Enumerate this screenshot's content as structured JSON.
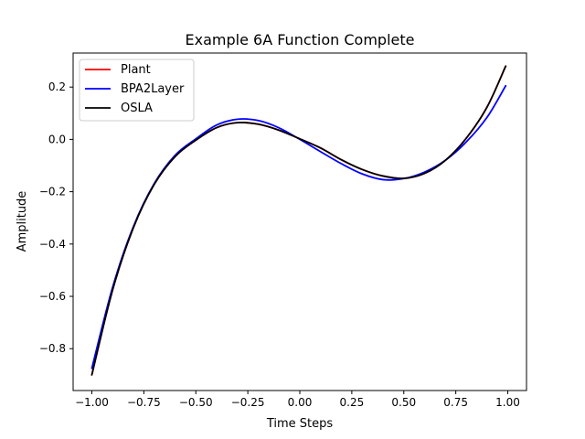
{
  "chart_data": {
    "type": "line",
    "title": "Example 6A Function Complete",
    "xlabel": "Time Steps",
    "ylabel": "Amplitude",
    "xlim": [
      -1.09,
      1.09
    ],
    "ylim": [
      -0.96,
      0.33
    ],
    "xticks": [
      -1.0,
      -0.75,
      -0.5,
      -0.25,
      0.0,
      0.25,
      0.5,
      0.75,
      1.0
    ],
    "xtick_labels": [
      "−1.00",
      "−0.75",
      "−0.50",
      "−0.25",
      "0.00",
      "0.25",
      "0.50",
      "0.75",
      "1.00"
    ],
    "yticks": [
      -0.8,
      -0.6,
      -0.4,
      -0.2,
      0.0,
      0.2
    ],
    "ytick_labels": [
      "−0.8",
      "−0.6",
      "−0.4",
      "−0.2",
      "0.0",
      "0.2"
    ],
    "grid": false,
    "legend_position": "upper-left",
    "x": [
      -1.0,
      -0.9,
      -0.8,
      -0.7,
      -0.6,
      -0.5,
      -0.4,
      -0.3,
      -0.2,
      -0.1,
      0.0,
      0.1,
      0.2,
      0.3,
      0.4,
      0.5,
      0.6,
      0.7,
      0.8,
      0.9,
      0.99
    ],
    "series": [
      {
        "name": "Plant",
        "color": "#ff0000",
        "values": [
          -0.9,
          -0.575,
          -0.337,
          -0.172,
          -0.066,
          -0.003,
          0.045,
          0.064,
          0.058,
          0.035,
          0.002,
          -0.033,
          -0.078,
          -0.115,
          -0.14,
          -0.149,
          -0.13,
          -0.08,
          0.004,
          0.123,
          0.28
        ]
      },
      {
        "name": "BPA2Layer",
        "color": "#0000ff",
        "values": [
          -0.875,
          -0.565,
          -0.333,
          -0.169,
          -0.061,
          0.002,
          0.055,
          0.077,
          0.072,
          0.044,
          0.0,
          -0.047,
          -0.093,
          -0.132,
          -0.154,
          -0.15,
          -0.125,
          -0.08,
          -0.01,
          0.084,
          0.205
        ]
      },
      {
        "name": "OSLA",
        "color": "#000000",
        "values": [
          -0.9,
          -0.575,
          -0.337,
          -0.172,
          -0.066,
          -0.003,
          0.045,
          0.064,
          0.058,
          0.035,
          0.002,
          -0.033,
          -0.078,
          -0.115,
          -0.14,
          -0.149,
          -0.13,
          -0.08,
          0.004,
          0.123,
          0.28
        ]
      }
    ]
  }
}
